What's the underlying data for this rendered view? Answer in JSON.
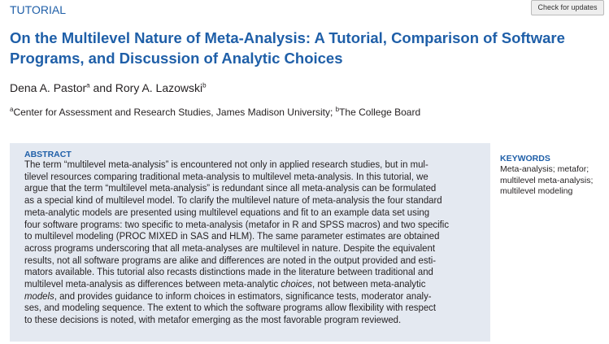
{
  "header": {
    "section": "TUTORIAL",
    "check_updates": "Check for updates"
  },
  "title_lines": [
    "On the Multilevel Nature of Meta-Analysis: A Tutorial, Comparison of Software",
    "Programs, and Discussion of Analytic Choices"
  ],
  "authors": {
    "people": [
      {
        "name": "Dena A. Pastor",
        "mark": "a"
      },
      {
        "name": "Rory A. Lazowski",
        "mark": "b"
      }
    ],
    "joiner": "and"
  },
  "affiliations": [
    {
      "mark": "a",
      "text": "Center for Assessment and Research Studies, James Madison University;"
    },
    {
      "mark": "b",
      "text": "The College Board"
    }
  ],
  "abstract": {
    "heading": "ABSTRACT",
    "lines": [
      [
        "The term “multilevel meta-analysis” is encountered not only in applied research studies, but in mul-"
      ],
      [
        "tilevel resources comparing traditional meta-analysis to multilevel meta-analysis. In this tutorial, we"
      ],
      [
        "argue that the term “multilevel meta-analysis” is redundant since all meta-analysis can be formulated"
      ],
      [
        "as a special kind of multilevel model. To clarify the multilevel nature of meta-analysis the four standard"
      ],
      [
        "meta-analytic models are presented using multilevel equations and fit to an example data set using"
      ],
      [
        "four software programs: two specific to meta-analysis (metafor in R and SPSS macros) and two specific"
      ],
      [
        "to multilevel modeling (PROC MIXED in SAS and HLM). The same parameter estimates are obtained"
      ],
      [
        "across programs underscoring that all meta-analyses are multilevel in nature. Despite the equivalent"
      ],
      [
        "results, not all software programs are alike and differences are noted in the output provided and esti-"
      ],
      [
        "mators available. This tutorial also recasts distinctions made in the literature between traditional and"
      ],
      [
        "multilevel meta-analysis as differences between meta-analytic ",
        {
          "text": "choices",
          "italic": true
        },
        ", not between meta-analytic"
      ],
      [
        {
          "text": "models",
          "italic": true
        },
        ", and provides guidance to inform choices in estimators, significance tests, moderator analy-"
      ],
      [
        "ses, and modeling sequence. The extent to which the software programs allow flexibility with respect"
      ],
      [
        "to these decisions is noted, with metafor emerging as the most favorable program reviewed."
      ]
    ]
  },
  "keywords": {
    "heading": "KEYWORDS",
    "lines": [
      "Meta-analysis; metafor;",
      "multilevel meta-analysis;",
      "multilevel modeling"
    ]
  }
}
